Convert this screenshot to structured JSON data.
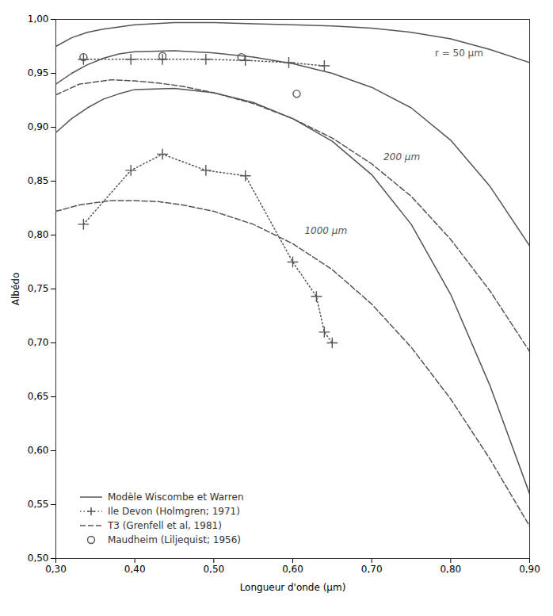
{
  "chart_data": {
    "type": "line",
    "xlabel": "Longueur d'onde (μm)",
    "ylabel": "Albédo",
    "xlim": [
      0.3,
      0.9
    ],
    "ylim": [
      0.5,
      1.0
    ],
    "xticks": [
      {
        "value": 0.3,
        "label": "0,30"
      },
      {
        "value": 0.4,
        "label": "0,40"
      },
      {
        "value": 0.5,
        "label": "0,50"
      },
      {
        "value": 0.6,
        "label": "0,60"
      },
      {
        "value": 0.7,
        "label": "0,70"
      },
      {
        "value": 0.8,
        "label": "0,80"
      },
      {
        "value": 0.9,
        "label": "0,90"
      }
    ],
    "yticks": [
      {
        "value": 0.5,
        "label": "0,50"
      },
      {
        "value": 0.55,
        "label": "0,55"
      },
      {
        "value": 0.6,
        "label": "0,60"
      },
      {
        "value": 0.65,
        "label": "0,65"
      },
      {
        "value": 0.7,
        "label": "0,70"
      },
      {
        "value": 0.75,
        "label": "0,75"
      },
      {
        "value": 0.8,
        "label": "0,80"
      },
      {
        "value": 0.85,
        "label": "0,85"
      },
      {
        "value": 0.9,
        "label": "0,90"
      },
      {
        "value": 0.95,
        "label": "0,95"
      },
      {
        "value": 1.0,
        "label": "1,00"
      }
    ],
    "grid": false,
    "legend": "lower left",
    "series": [
      {
        "name": "Modèle Wiscombe et Warren",
        "color": "#555555",
        "line_style": "solid",
        "marker": "none",
        "x": [
          0.3,
          0.32,
          0.34,
          0.36,
          0.38,
          0.4,
          0.45,
          0.5,
          0.55,
          0.6,
          0.65,
          0.7,
          0.75,
          0.8,
          0.85,
          0.9
        ],
        "values": [
          0.975,
          0.983,
          0.988,
          0.991,
          0.993,
          0.995,
          0.997,
          0.997,
          0.996,
          0.995,
          0.994,
          0.992,
          0.988,
          0.982,
          0.972,
          0.96
        ]
      },
      {
        "name": "Modèle Wiscombe et Warren",
        "color": "#555555",
        "line_style": "solid",
        "marker": "none",
        "x": [
          0.3,
          0.32,
          0.34,
          0.36,
          0.38,
          0.4,
          0.45,
          0.5,
          0.55,
          0.6,
          0.65,
          0.7,
          0.75,
          0.8,
          0.85,
          0.9
        ],
        "values": [
          0.94,
          0.95,
          0.958,
          0.964,
          0.968,
          0.97,
          0.971,
          0.969,
          0.965,
          0.959,
          0.95,
          0.937,
          0.918,
          0.888,
          0.845,
          0.79
        ]
      },
      {
        "name": "Modèle Wiscombe et Warren",
        "color": "#555555",
        "line_style": "solid",
        "marker": "none",
        "x": [
          0.3,
          0.32,
          0.34,
          0.36,
          0.38,
          0.4,
          0.45,
          0.5,
          0.55,
          0.6,
          0.65,
          0.7,
          0.75,
          0.8,
          0.85,
          0.9
        ],
        "values": [
          0.895,
          0.908,
          0.918,
          0.926,
          0.931,
          0.935,
          0.936,
          0.932,
          0.923,
          0.908,
          0.887,
          0.856,
          0.81,
          0.745,
          0.66,
          0.56
        ]
      },
      {
        "name": "Ile Devon (Holmgren; 1971)",
        "color": "#555555",
        "line_style": "dotted",
        "marker": "plus",
        "x": [
          0.335,
          0.395,
          0.435,
          0.49,
          0.54,
          0.595,
          0.64
        ],
        "values": [
          0.963,
          0.963,
          0.963,
          0.963,
          0.962,
          0.96,
          0.957
        ]
      },
      {
        "name": "Ile Devon (Holmgren; 1971)",
        "color": "#555555",
        "line_style": "dotted",
        "marker": "plus",
        "x": [
          0.335,
          0.395,
          0.435,
          0.49,
          0.54,
          0.6,
          0.63,
          0.64,
          0.65
        ],
        "values": [
          0.81,
          0.86,
          0.875,
          0.86,
          0.855,
          0.775,
          0.743,
          0.71,
          0.7
        ]
      },
      {
        "name": "T3 (Grenfell et al, 1981)",
        "color": "#555555",
        "line_style": "dashed",
        "marker": "none",
        "x": [
          0.3,
          0.33,
          0.37,
          0.4,
          0.43,
          0.46,
          0.5,
          0.55,
          0.6,
          0.65,
          0.7,
          0.75,
          0.8,
          0.85,
          0.9
        ],
        "values": [
          0.93,
          0.94,
          0.944,
          0.943,
          0.941,
          0.938,
          0.932,
          0.922,
          0.908,
          0.89,
          0.866,
          0.836,
          0.796,
          0.748,
          0.692
        ]
      },
      {
        "name": "T3 (Grenfell et al, 1981)",
        "color": "#555555",
        "line_style": "dashed",
        "marker": "none",
        "x": [
          0.3,
          0.33,
          0.37,
          0.4,
          0.43,
          0.46,
          0.5,
          0.55,
          0.6,
          0.65,
          0.7,
          0.75,
          0.8,
          0.85,
          0.9
        ],
        "values": [
          0.822,
          0.828,
          0.832,
          0.832,
          0.831,
          0.828,
          0.822,
          0.81,
          0.792,
          0.768,
          0.736,
          0.696,
          0.648,
          0.592,
          0.53
        ]
      },
      {
        "name": "Maudheim (Liljequist; 1956)",
        "color": "#555555",
        "line_style": "none",
        "marker": "circle",
        "x": [
          0.335,
          0.435,
          0.535,
          0.605
        ],
        "values": [
          0.965,
          0.966,
          0.965,
          0.931
        ]
      }
    ],
    "annotations": [
      {
        "text": "r = 50 μm",
        "x": 0.78,
        "y": 0.975
      },
      {
        "text": "200 μm",
        "x": 0.715,
        "y": 0.868
      },
      {
        "text": "1000 μm",
        "x": 0.615,
        "y": 0.8
      }
    ]
  }
}
